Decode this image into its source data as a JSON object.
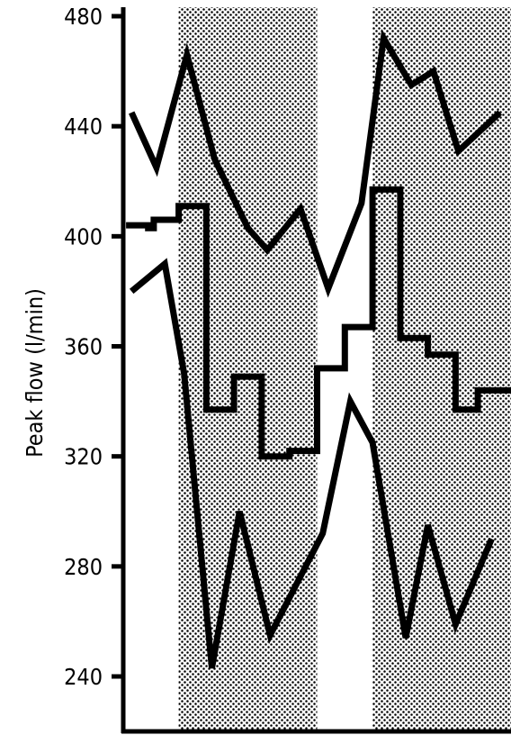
{
  "chart_data": {
    "type": "line",
    "title": "",
    "xlabel": "",
    "ylabel": "Peak flow  (l/min)",
    "ylim": [
      230,
      484
    ],
    "yticks": [
      240,
      280,
      320,
      360,
      400,
      440,
      480
    ],
    "xlim": [
      0,
      14
    ],
    "grid": false,
    "legend": "none",
    "shaded_periods": [
      [
        2,
        7
      ],
      [
        9,
        14
      ]
    ],
    "shade_pattern": "dotted",
    "colors": {
      "line": "#000000",
      "shade_dot": "#000000",
      "background": "#ffffff"
    },
    "series": [
      {
        "style": "line",
        "points": [
          [
            0.3,
            445
          ],
          [
            1.2,
            425
          ],
          [
            2.3,
            466
          ],
          [
            3.3,
            428
          ],
          [
            4.5,
            403
          ],
          [
            5.2,
            395
          ],
          [
            6.4,
            410
          ],
          [
            7.4,
            381
          ],
          [
            8.6,
            412
          ],
          [
            9.4,
            472
          ],
          [
            10.4,
            455
          ],
          [
            11.2,
            460
          ],
          [
            12.1,
            431
          ],
          [
            13.6,
            445
          ]
        ]
      },
      {
        "style": "step",
        "points": [
          [
            0.1,
            404
          ],
          [
            0.9,
            404
          ],
          [
            0.9,
            403
          ],
          [
            1.1,
            403
          ],
          [
            1.1,
            406
          ],
          [
            2.0,
            406
          ],
          [
            2.0,
            411
          ],
          [
            3.0,
            411
          ],
          [
            3.0,
            337
          ],
          [
            4.0,
            337
          ],
          [
            4.0,
            349
          ],
          [
            5.0,
            349
          ],
          [
            5.0,
            320
          ],
          [
            6.0,
            320
          ],
          [
            6.0,
            322
          ],
          [
            7.0,
            322
          ],
          [
            7.0,
            352
          ],
          [
            8.0,
            352
          ],
          [
            8.0,
            367
          ],
          [
            9.0,
            367
          ],
          [
            9.0,
            417
          ],
          [
            10.0,
            417
          ],
          [
            10.0,
            363
          ],
          [
            11.0,
            363
          ],
          [
            11.0,
            357
          ],
          [
            12.0,
            357
          ],
          [
            12.0,
            337
          ],
          [
            12.8,
            337
          ],
          [
            12.8,
            344
          ],
          [
            14.0,
            344
          ]
        ]
      },
      {
        "style": "line",
        "points": [
          [
            0.3,
            380
          ],
          [
            1.5,
            390
          ],
          [
            2.2,
            350
          ],
          [
            3.2,
            243
          ],
          [
            4.2,
            300
          ],
          [
            5.3,
            255
          ],
          [
            7.2,
            292
          ],
          [
            8.2,
            340
          ],
          [
            9.0,
            325
          ],
          [
            10.2,
            254
          ],
          [
            11.0,
            295
          ],
          [
            12.0,
            259
          ],
          [
            13.3,
            290
          ]
        ]
      }
    ]
  }
}
